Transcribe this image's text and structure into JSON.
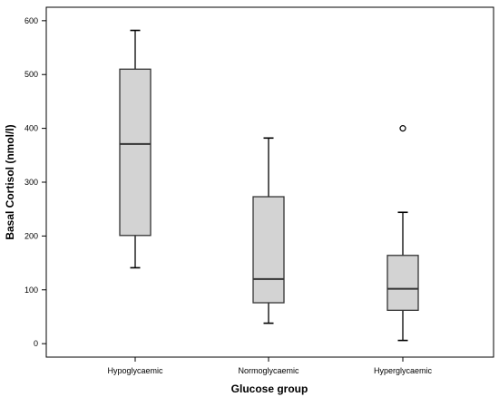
{
  "chart_data": {
    "type": "boxplot",
    "xlabel": "Glucose group",
    "ylabel": "Basal Cortisol (nmol/l)",
    "ylim": [
      -25,
      625
    ],
    "yticks": [
      0,
      100,
      200,
      300,
      400,
      500,
      600
    ],
    "grid": false,
    "categories": [
      "Hypoglycaemic",
      "Normoglycaemic",
      "Hyperglycaemic"
    ],
    "boxes": [
      {
        "category": "Hypoglycaemic",
        "min": 141,
        "q1": 201,
        "median": 371,
        "q3": 510,
        "max": 582,
        "outliers": []
      },
      {
        "category": "Normoglycaemic",
        "min": 38,
        "q1": 76,
        "median": 120,
        "q3": 273,
        "max": 382,
        "outliers": []
      },
      {
        "category": "Hyperglycaemic",
        "min": 6,
        "q1": 62,
        "median": 102,
        "q3": 164,
        "max": 244,
        "outliers": [
          400
        ]
      }
    ],
    "colors": {
      "box_fill": "#d3d3d3",
      "stroke": "#333333"
    }
  }
}
